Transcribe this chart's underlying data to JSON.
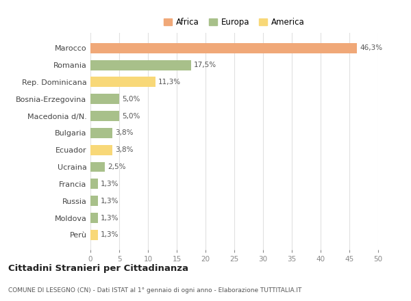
{
  "categories": [
    "Marocco",
    "Romania",
    "Rep. Dominicana",
    "Bosnia-Erzegovina",
    "Macedonia d/N.",
    "Bulgaria",
    "Ecuador",
    "Ucraina",
    "Francia",
    "Russia",
    "Moldova",
    "Perù"
  ],
  "values": [
    46.3,
    17.5,
    11.3,
    5.0,
    5.0,
    3.8,
    3.8,
    2.5,
    1.3,
    1.3,
    1.3,
    1.3
  ],
  "labels": [
    "46,3%",
    "17,5%",
    "11,3%",
    "5,0%",
    "5,0%",
    "3,8%",
    "3,8%",
    "2,5%",
    "1,3%",
    "1,3%",
    "1,3%",
    "1,3%"
  ],
  "colors": [
    "#F0A878",
    "#A8C08A",
    "#F8D878",
    "#A8C08A",
    "#A8C08A",
    "#A8C08A",
    "#F8D878",
    "#A8C08A",
    "#A8C08A",
    "#A8C08A",
    "#A8C08A",
    "#F8D878"
  ],
  "continents": [
    "Africa",
    "Europa",
    "America"
  ],
  "legend_colors": [
    "#F0A878",
    "#A8C08A",
    "#F8D878"
  ],
  "title": "Cittadini Stranieri per Cittadinanza",
  "subtitle": "COMUNE DI LESEGNO (CN) - Dati ISTAT al 1° gennaio di ogni anno - Elaborazione TUTTITALIA.IT",
  "xlim": [
    0,
    50
  ],
  "xticks": [
    0,
    5,
    10,
    15,
    20,
    25,
    30,
    35,
    40,
    45,
    50
  ],
  "background_color": "#ffffff",
  "grid_color": "#e0e0e0"
}
